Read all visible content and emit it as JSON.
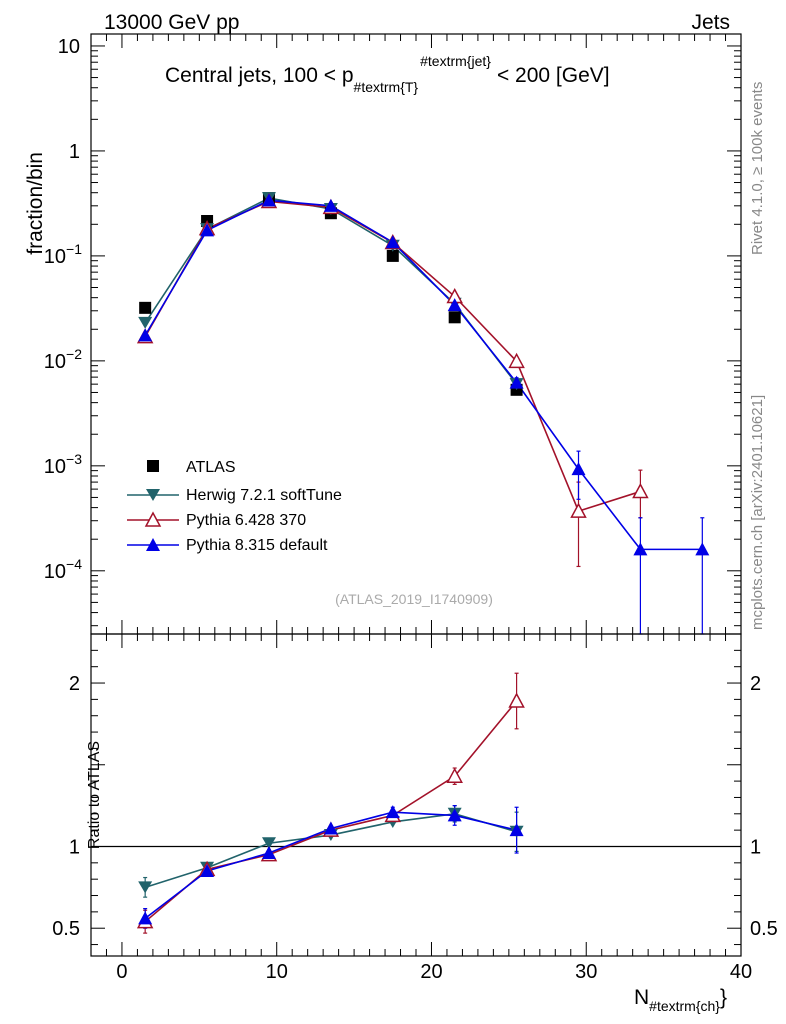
{
  "header": {
    "left": "13000 GeV pp",
    "right": "Jets"
  },
  "side": {
    "rivet": "Rivet 4.1.0, ≥ 100k events",
    "mcplots": "mcplots.cern.ch [arXiv:2401.10621]"
  },
  "colors": {
    "atlas": "#000000",
    "herwig": "#21636b",
    "pythia6": "#a3122a",
    "pythia8": "#0000e6"
  },
  "chart_data": [
    {
      "type": "scatter",
      "title": "Central jets, 100 < p_{#textrm{T}}^{#textrm{jet}} < 200 [GeV]",
      "title_parts": {
        "prefix": "Central jets, 100 < p",
        "sub": "#textrm{T}",
        "sup": "#textrm{jet}",
        "suffix": "< 200 [GeV]"
      },
      "ylabel": "fraction/bin",
      "yscale": "log",
      "ylim": [
        2.5e-05,
        13
      ],
      "xlim": [
        -2,
        40
      ],
      "y_ticks": [
        {
          "value": 10,
          "label": "10"
        },
        {
          "value": 1,
          "label": "1"
        },
        {
          "value": 0.1,
          "base": "10",
          "exp": "−1"
        },
        {
          "value": 0.01,
          "base": "10",
          "exp": "−2"
        },
        {
          "value": 0.001,
          "base": "10",
          "exp": "−3"
        },
        {
          "value": 0.0001,
          "base": "10",
          "exp": "−4"
        }
      ],
      "watermark": "(ATLAS_2019_I1740909)",
      "legend_position": "bottom-left",
      "series": [
        {
          "name": "ATLAS",
          "key": "atlas",
          "marker": "square",
          "line": false,
          "x": [
            1.5,
            5.5,
            9.5,
            13.5,
            17.5,
            21.5,
            25.5
          ],
          "y": [
            0.032,
            0.215,
            0.355,
            0.255,
            0.1,
            0.026,
            0.0053
          ]
        },
        {
          "name": "Herwig 7.2.1 softTune",
          "key": "herwig",
          "marker": "triangle-down",
          "line": true,
          "x": [
            1.5,
            5.5,
            9.5,
            13.5,
            17.5,
            21.5,
            25.5
          ],
          "y": [
            0.023,
            0.18,
            0.355,
            0.28,
            0.125,
            0.035,
            0.006
          ]
        },
        {
          "name": "Pythia 6.428 370",
          "key": "pythia6",
          "marker": "triangle-up-open",
          "line": true,
          "x": [
            1.5,
            5.5,
            9.5,
            13.5,
            17.5,
            21.5,
            25.5,
            29.5,
            33.5
          ],
          "y": [
            0.017,
            0.182,
            0.33,
            0.29,
            0.134,
            0.041,
            0.0099,
            0.00037,
            0.00057
          ],
          "err_lo": [
            0,
            0,
            0,
            0,
            0,
            0.002,
            0.0008,
            0.00026,
            0.00025
          ],
          "err_hi": [
            0,
            0,
            0,
            0,
            0,
            0.002,
            0.0008,
            0.00033,
            0.00034
          ]
        },
        {
          "name": "Pythia 8.315 default",
          "key": "pythia8",
          "marker": "triangle-up",
          "line": true,
          "x": [
            1.5,
            5.5,
            9.5,
            13.5,
            17.5,
            21.5,
            25.5,
            29.5,
            33.5,
            37.5
          ],
          "y": [
            0.0175,
            0.175,
            0.338,
            0.3,
            0.135,
            0.034,
            0.0062,
            0.00093,
            0.00016,
            0.00016
          ],
          "err_lo": [
            0,
            0,
            0,
            0,
            0,
            0.002,
            0.0007,
            0.00045,
            0.00016,
            0.00016
          ],
          "err_hi": [
            0,
            0,
            0,
            0,
            0,
            0.002,
            0.0007,
            0.00045,
            0.00016,
            0.00016
          ]
        }
      ]
    },
    {
      "type": "line",
      "ylabel": "Ratio to ATLAS",
      "xlabel_main": "N",
      "xlabel_sub": "#textrm{ch}",
      "xlim": [
        -2,
        40
      ],
      "ylim": [
        0.33,
        2.3
      ],
      "x_ticks": [
        0,
        10,
        20,
        30,
        40
      ],
      "y_ticks": [
        {
          "value": 2,
          "label": "2"
        },
        {
          "value": 1,
          "label": "1"
        },
        {
          "value": 0.5,
          "label": "0.5"
        }
      ],
      "reference_line": 1,
      "series": [
        {
          "name": "Herwig 7.2.1 softTune",
          "key": "herwig",
          "marker": "triangle-down",
          "x": [
            1.5,
            5.5,
            9.5,
            13.5,
            17.5,
            21.5,
            25.5
          ],
          "y": [
            0.75,
            0.87,
            1.02,
            1.07,
            1.15,
            1.2,
            1.09
          ],
          "err": [
            0.06,
            0.01,
            0.01,
            0.01,
            0.01,
            0.05,
            0.12
          ]
        },
        {
          "name": "Pythia 6.428 370",
          "key": "pythia6",
          "marker": "triangle-up-open",
          "x": [
            1.5,
            5.5,
            9.5,
            13.5,
            17.5,
            21.5,
            25.5
          ],
          "y": [
            0.54,
            0.86,
            0.95,
            1.1,
            1.19,
            1.43,
            1.89
          ],
          "err": [
            0.07,
            0.01,
            0.01,
            0.01,
            0.02,
            0.05,
            0.17
          ]
        },
        {
          "name": "Pythia 8.315 default",
          "key": "pythia8",
          "marker": "triangle-up",
          "x": [
            1.5,
            5.5,
            9.5,
            13.5,
            17.5,
            21.5,
            25.5
          ],
          "y": [
            0.56,
            0.85,
            0.96,
            1.11,
            1.21,
            1.19,
            1.1
          ],
          "err": [
            0.06,
            0.01,
            0.01,
            0.01,
            0.03,
            0.06,
            0.14
          ]
        }
      ]
    }
  ]
}
